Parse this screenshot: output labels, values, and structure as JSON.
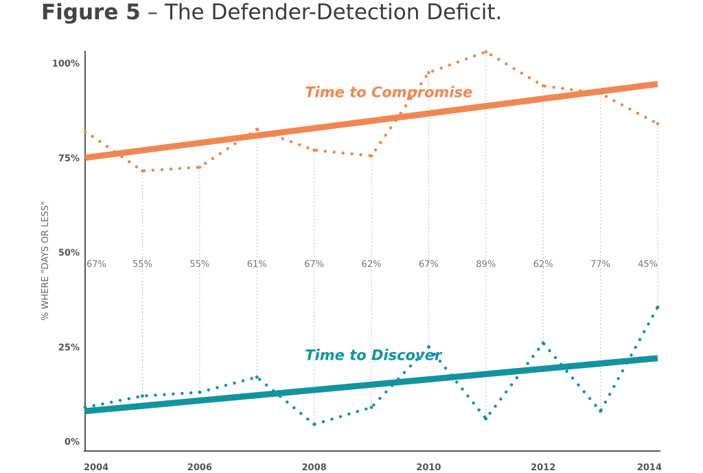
{
  "figure": {
    "label": "Figure 5",
    "dash": "–",
    "caption": "The Defender-Detection Deficit."
  },
  "colors": {
    "compromise": "#f08752",
    "discover": "#1393a0",
    "axis": "#555555",
    "text": "#666666",
    "guide": "#bbbbbb"
  },
  "chart_data": {
    "type": "line",
    "title": "",
    "xlabel": "",
    "ylabel": "% WHERE \"DAYS OR LESS\"",
    "xlim": [
      2004,
      2014
    ],
    "ylim": [
      0,
      100
    ],
    "x_ticks": [
      2004,
      2006,
      2008,
      2010,
      2012,
      2014
    ],
    "y_ticks": [
      {
        "value": 0,
        "label": "0%"
      },
      {
        "value": 25,
        "label": "25%"
      },
      {
        "value": 50,
        "label": "50%"
      },
      {
        "value": 75,
        "label": "75%"
      },
      {
        "value": 100,
        "label": "100%"
      }
    ],
    "grid": false,
    "series": [
      {
        "name": "Time to Compromise",
        "style": "dotted",
        "color": "#f08752",
        "x": [
          2004,
          2005,
          2006,
          2007,
          2008,
          2009,
          2010,
          2011,
          2012,
          2013,
          2014
        ],
        "y": [
          82,
          71.5,
          72.5,
          82.5,
          77,
          75.5,
          97.5,
          103,
          94,
          92,
          84
        ]
      },
      {
        "name": "Time to Compromise trend",
        "style": "solid",
        "color": "#f08752",
        "x": [
          2004,
          2014
        ],
        "y": [
          75,
          94.5
        ]
      },
      {
        "name": "Time to Discover",
        "style": "dotted",
        "color": "#1393a0",
        "x": [
          2004,
          2005,
          2006,
          2007,
          2008,
          2009,
          2010,
          2011,
          2012,
          2013,
          2014
        ],
        "y": [
          9,
          12,
          13,
          17,
          4.5,
          9,
          25,
          6,
          26,
          8,
          35.5
        ]
      },
      {
        "name": "Time to Discover trend",
        "style": "solid",
        "color": "#1393a0",
        "x": [
          2004,
          2014
        ],
        "y": [
          8,
          22
        ]
      }
    ],
    "series_labels": [
      {
        "text": "Time to Compromise",
        "x": 2007.6,
        "y": 92.5,
        "color": "#f08752"
      },
      {
        "text": "Time to Discover",
        "x": 2007.6,
        "y": 23,
        "color": "#1393a0"
      }
    ],
    "ratio_labels": {
      "y": 47,
      "points": [
        {
          "x": 2004,
          "label": "67%"
        },
        {
          "x": 2005,
          "label": "55%"
        },
        {
          "x": 2006,
          "label": "55%"
        },
        {
          "x": 2007,
          "label": "61%"
        },
        {
          "x": 2008,
          "label": "67%"
        },
        {
          "x": 2009,
          "label": "62%"
        },
        {
          "x": 2010,
          "label": "67%"
        },
        {
          "x": 2011,
          "label": "89%"
        },
        {
          "x": 2012,
          "label": "62%"
        },
        {
          "x": 2013,
          "label": "77%"
        },
        {
          "x": 2014,
          "label": "45%"
        }
      ]
    }
  }
}
